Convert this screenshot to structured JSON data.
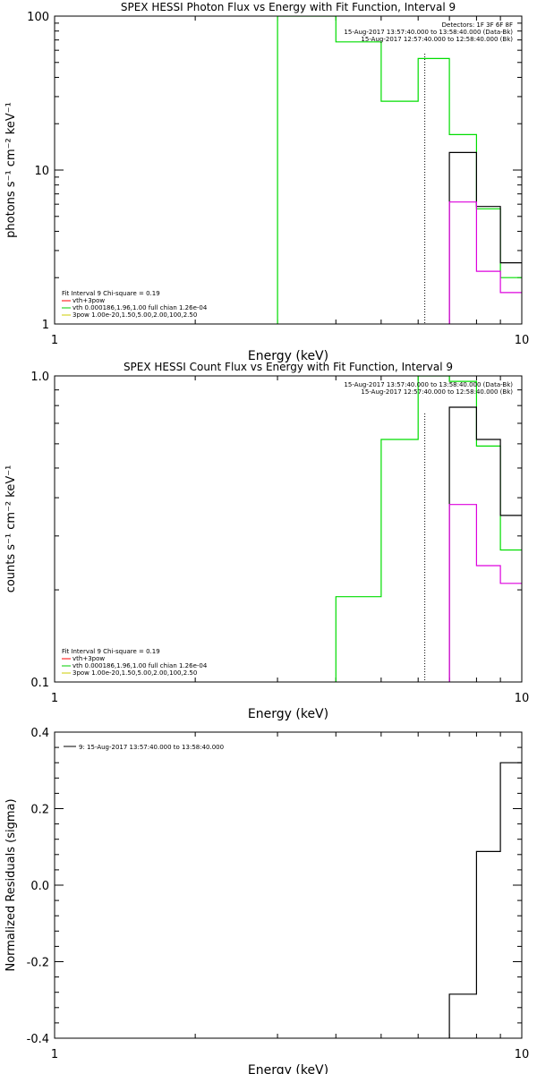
{
  "chart_data": [
    {
      "type": "line",
      "title": "SPEX HESSI Photon Flux vs Energy with Fit Function, Interval 9",
      "xlabel": "Energy (keV)",
      "ylabel": "photons s⁻¹ cm⁻² keV⁻¹",
      "x_scale": "log",
      "y_scale": "log",
      "xlim": [
        1,
        10
      ],
      "ylim": [
        1,
        100
      ],
      "x_ticks": [
        {
          "v": 1,
          "label": "1"
        },
        {
          "v": 10,
          "label": "10"
        }
      ],
      "y_ticks": [
        {
          "v": 1,
          "label": "1"
        },
        {
          "v": 10,
          "label": "10"
        },
        {
          "v": 100,
          "label": "100"
        }
      ],
      "legend_top": [
        "Detectors: 1F 3F 6F 8F",
        "15-Aug-2017 13:57:40.000 to 13:58:40.000 (Data-Bk)",
        "15-Aug-2017 12:57:40.000 to 12:58:40.000 (Bk)"
      ],
      "legend_bottom": [
        {
          "text": "Fit Interval 9   Chi-square = 0.19",
          "color": ""
        },
        {
          "text": "vth+3pow",
          "color": "#ff0000"
        },
        {
          "text": "vth 0.000186,1.96,1.00  full chian 1.26e-04",
          "color": "#00cc00"
        },
        {
          "text": "3pow 1.00e-20,1.50,5.00,2.00,100,2.50",
          "color": "#cccc00"
        }
      ],
      "fit_boundary_x": 6.2,
      "series": [
        {
          "color": "#00dd00",
          "points": [
            [
              3.0,
              1
            ],
            [
              3.0,
              100
            ],
            [
              4.0,
              100
            ],
            [
              4.0,
              68
            ],
            [
              5.0,
              68
            ],
            [
              5.0,
              28
            ],
            [
              6.0,
              28
            ],
            [
              6.0,
              53
            ],
            [
              7.0,
              53
            ],
            [
              7.0,
              17
            ],
            [
              8.0,
              17
            ],
            [
              8.0,
              5.6
            ],
            [
              9.0,
              5.6
            ],
            [
              9.0,
              2.0
            ],
            [
              10.0,
              2.0
            ]
          ]
        },
        {
          "color": "#000000",
          "points": [
            [
              7.0,
              1
            ],
            [
              7.0,
              13
            ],
            [
              8.0,
              13
            ],
            [
              8.0,
              5.8
            ],
            [
              9.0,
              5.8
            ],
            [
              9.0,
              2.5
            ],
            [
              10.0,
              2.5
            ]
          ]
        },
        {
          "color": "#dd00dd",
          "points": [
            [
              7.0,
              1
            ],
            [
              7.0,
              6.2
            ],
            [
              8.0,
              6.2
            ],
            [
              8.0,
              2.2
            ],
            [
              9.0,
              2.2
            ],
            [
              9.0,
              1.6
            ],
            [
              10.0,
              1.6
            ]
          ]
        }
      ]
    },
    {
      "type": "line",
      "title": "SPEX HESSI Count Flux vs Energy with Fit Function, Interval 9",
      "xlabel": "Energy (keV)",
      "ylabel": "counts s⁻¹ cm⁻² keV⁻¹",
      "x_scale": "log",
      "y_scale": "log",
      "xlim": [
        1,
        10
      ],
      "ylim": [
        0.1,
        1.0
      ],
      "x_ticks": [
        {
          "v": 1,
          "label": "1"
        },
        {
          "v": 10,
          "label": "10"
        }
      ],
      "y_ticks": [
        {
          "v": 0.1,
          "label": "0.1"
        },
        {
          "v": 1.0,
          "label": "1.0"
        }
      ],
      "legend_top": [
        "15-Aug-2017 13:57:40.000 to 13:58:40.000 (Data-Bk)",
        "15-Aug-2017 12:57:40.000 to 12:58:40.000 (Bk)"
      ],
      "legend_bottom": [
        {
          "text": "Fit Interval 9   Chi-square = 0.19",
          "color": ""
        },
        {
          "text": "vth+3pow",
          "color": "#ff0000"
        },
        {
          "text": "vth 0.000186,1.96,1.00  full chian 1.26e-04",
          "color": "#00cc00"
        },
        {
          "text": "3pow 1.00e-20,1.50,5.00,2.00,100,2.50",
          "color": "#cccc00"
        }
      ],
      "fit_boundary_x": 6.2,
      "series": [
        {
          "color": "#00dd00",
          "points": [
            [
              4.0,
              0.1
            ],
            [
              4.0,
              0.19
            ],
            [
              5.0,
              0.19
            ],
            [
              5.0,
              0.62
            ],
            [
              6.0,
              0.62
            ],
            [
              6.0,
              1.0
            ],
            [
              7.0,
              1.0
            ],
            [
              7.0,
              0.96
            ],
            [
              8.0,
              0.96
            ],
            [
              8.0,
              0.59
            ],
            [
              9.0,
              0.59
            ],
            [
              9.0,
              0.27
            ],
            [
              10.0,
              0.27
            ]
          ]
        },
        {
          "color": "#000000",
          "points": [
            [
              7.0,
              0.1
            ],
            [
              7.0,
              0.79
            ],
            [
              8.0,
              0.79
            ],
            [
              8.0,
              0.62
            ],
            [
              9.0,
              0.62
            ],
            [
              9.0,
              0.35
            ],
            [
              10.0,
              0.35
            ]
          ]
        },
        {
          "color": "#dd00dd",
          "points": [
            [
              7.0,
              0.1
            ],
            [
              7.0,
              0.38
            ],
            [
              8.0,
              0.38
            ],
            [
              8.0,
              0.24
            ],
            [
              9.0,
              0.24
            ],
            [
              9.0,
              0.21
            ],
            [
              10.0,
              0.21
            ]
          ]
        }
      ]
    },
    {
      "type": "line",
      "title": "",
      "xlabel": "Energy (keV)",
      "ylabel": "Normalized Residuals (sigma)",
      "x_scale": "log",
      "y_scale": "linear",
      "xlim": [
        1,
        10
      ],
      "ylim": [
        -0.4,
        0.4
      ],
      "x_ticks": [
        {
          "v": 1,
          "label": "1"
        },
        {
          "v": 10,
          "label": "10"
        }
      ],
      "y_ticks": [
        {
          "v": -0.4,
          "label": "-0.4"
        },
        {
          "v": -0.2,
          "label": "-0.2"
        },
        {
          "v": 0.0,
          "label": "0.0"
        },
        {
          "v": 0.2,
          "label": "0.2"
        },
        {
          "v": 0.4,
          "label": "0.4"
        }
      ],
      "legend_entry": "9: 15-Aug-2017 13:57:40.000 to 13:58:40.000",
      "series": [
        {
          "color": "#000000",
          "points": [
            [
              7.0,
              -0.4
            ],
            [
              7.0,
              -0.285
            ],
            [
              8.0,
              -0.285
            ],
            [
              8.0,
              0.088
            ],
            [
              9.0,
              0.088
            ],
            [
              9.0,
              0.32
            ],
            [
              10.0,
              0.32
            ]
          ]
        }
      ]
    }
  ]
}
